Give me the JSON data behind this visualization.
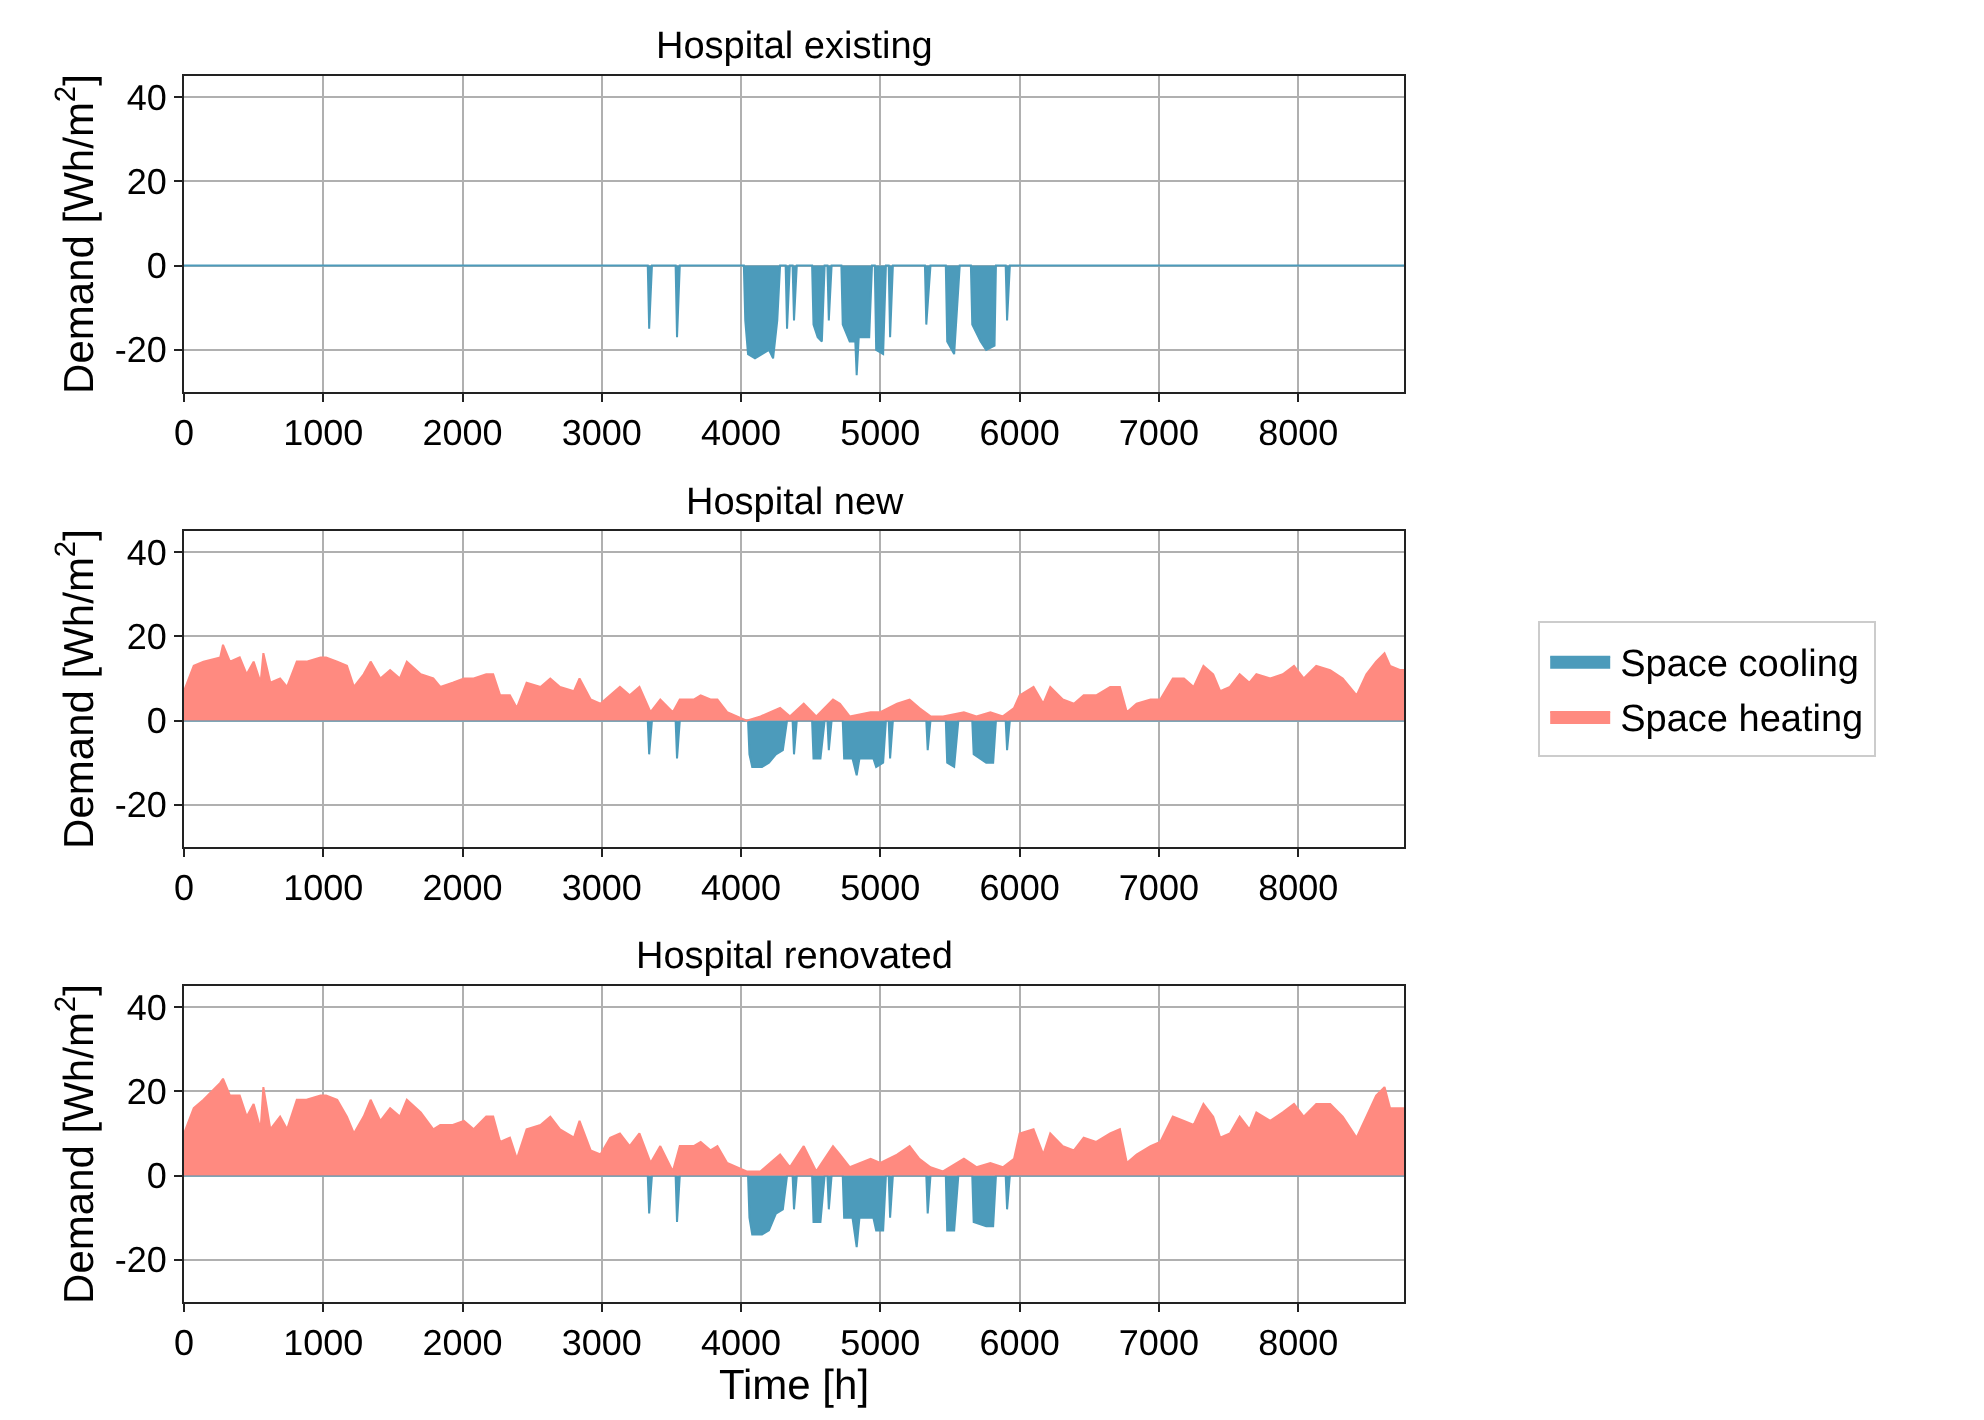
{
  "chart_data": [
    {
      "type": "area",
      "title": "Hospital existing",
      "ylabel": "Demand [Wh/m$^{2}$]",
      "xlim": [
        0,
        8760
      ],
      "xticks": [
        0,
        1000,
        2000,
        3000,
        4000,
        5000,
        6000,
        7000,
        8000
      ],
      "ylim": [
        -30,
        45
      ],
      "yticks": [
        -20,
        0,
        20,
        40
      ],
      "grid": true,
      "series": [
        {
          "color": "#4c9bbb",
          "x": [
            0,
            3330,
            3340,
            3360,
            3530,
            3540,
            3560,
            4020,
            4030,
            4050,
            4100,
            4150,
            4200,
            4230,
            4260,
            4280,
            4320,
            4330,
            4350,
            4370,
            4380,
            4400,
            4510,
            4520,
            4550,
            4580,
            4600,
            4620,
            4630,
            4650,
            4720,
            4730,
            4780,
            4820,
            4830,
            4845,
            4920,
            4940,
            4960,
            4970,
            5020,
            5040,
            5060,
            5070,
            5090,
            5320,
            5330,
            5360,
            5470,
            5480,
            5530,
            5570,
            5650,
            5660,
            5720,
            5760,
            5820,
            5830,
            5900,
            5910,
            5930,
            8760
          ],
          "values": [
            0,
            0,
            -15,
            0,
            0,
            -17,
            0,
            0,
            -13,
            -21,
            -22,
            -21,
            -20,
            -22,
            -13,
            0,
            0,
            -15,
            0,
            0,
            -13,
            0,
            0,
            -14,
            -17,
            -18,
            0,
            0,
            -13,
            0,
            0,
            -14,
            -18,
            -18,
            -26,
            -17,
            -17,
            0,
            0,
            -20,
            -21,
            0,
            0,
            -17,
            0,
            0,
            -14,
            0,
            0,
            -18,
            -21,
            0,
            0,
            -14,
            -18,
            -20,
            -19,
            0,
            0,
            -13,
            0,
            0
          ]
        }
      ]
    },
    {
      "type": "area",
      "title": "Hospital new",
      "ylabel": "Demand [Wh/m$^{2}$]",
      "xlim": [
        0,
        8760
      ],
      "xticks": [
        0,
        1000,
        2000,
        3000,
        4000,
        5000,
        6000,
        7000,
        8000
      ],
      "ylim": [
        -30,
        45
      ],
      "yticks": [
        -20,
        0,
        20,
        40
      ],
      "grid": true,
      "legend": "right",
      "series": [
        {
          "name": "Space cooling",
          "color": "#4c9bbb",
          "x": [
            0,
            3330,
            3340,
            3360,
            3530,
            3540,
            3560,
            4050,
            4060,
            4080,
            4150,
            4200,
            4250,
            4300,
            4330,
            4370,
            4380,
            4400,
            4510,
            4520,
            4570,
            4600,
            4620,
            4630,
            4650,
            4730,
            4740,
            4800,
            4830,
            4850,
            4950,
            4970,
            5020,
            5040,
            5060,
            5070,
            5090,
            5330,
            5340,
            5360,
            5470,
            5480,
            5530,
            5560,
            5660,
            5670,
            5760,
            5810,
            5830,
            5900,
            5910,
            5930,
            8760
          ],
          "values": [
            0,
            0,
            -8,
            0,
            0,
            -9,
            0,
            0,
            -8,
            -11,
            -11,
            -10,
            -8,
            -7,
            0,
            0,
            -8,
            0,
            0,
            -9,
            -9,
            0,
            0,
            -7,
            0,
            0,
            -9,
            -9,
            -13,
            -9,
            -9,
            -11,
            -10,
            0,
            0,
            -9,
            0,
            0,
            -7,
            0,
            0,
            -10,
            -11,
            0,
            0,
            -8,
            -10,
            -10,
            0,
            0,
            -7,
            0,
            0
          ]
        },
        {
          "name": "Space heating",
          "color": "#ff8a80",
          "x": [
            0,
            70,
            140,
            260,
            280,
            330,
            400,
            450,
            500,
            550,
            570,
            620,
            690,
            740,
            810,
            880,
            980,
            1020,
            1100,
            1170,
            1220,
            1290,
            1340,
            1410,
            1480,
            1550,
            1600,
            1700,
            1790,
            1840,
            1930,
            2010,
            2080,
            2170,
            2220,
            2270,
            2340,
            2390,
            2460,
            2560,
            2630,
            2700,
            2800,
            2840,
            2920,
            2990,
            3060,
            3130,
            3200,
            3270,
            3350,
            3420,
            3510,
            3560,
            3660,
            3710,
            3780,
            3830,
            3900,
            3970,
            4040,
            4140,
            4280,
            4350,
            4450,
            4540,
            4660,
            4710,
            4780,
            4930,
            5000,
            5120,
            5210,
            5280,
            5360,
            5450,
            5600,
            5690,
            5790,
            5880,
            5960,
            6000,
            6100,
            6170,
            6220,
            6310,
            6390,
            6460,
            6550,
            6650,
            6720,
            6770,
            6840,
            6940,
            7010,
            7100,
            7180,
            7250,
            7320,
            7390,
            7440,
            7510,
            7580,
            7650,
            7700,
            7800,
            7890,
            7970,
            8040,
            8130,
            8230,
            8320,
            8420,
            8490,
            8560,
            8620,
            8660,
            8730,
            8760
          ],
          "values": [
            7,
            13,
            14,
            15,
            18,
            14,
            15,
            11,
            14,
            9,
            16,
            9,
            10,
            8,
            14,
            14,
            15,
            15,
            14,
            13,
            8,
            11,
            14,
            10,
            12,
            10,
            14,
            11,
            10,
            8,
            9,
            10,
            10,
            11,
            11,
            6,
            6,
            3,
            9,
            8,
            10,
            8,
            7,
            10,
            5,
            4,
            6,
            8,
            6,
            8,
            2,
            5,
            2,
            5,
            5,
            6,
            5,
            5,
            2,
            1,
            0,
            1,
            3,
            1,
            4,
            1,
            5,
            4,
            1,
            2,
            2,
            4,
            5,
            3,
            1,
            1,
            2,
            1,
            2,
            1,
            3,
            6,
            8,
            4,
            8,
            5,
            4,
            6,
            6,
            8,
            8,
            2,
            4,
            5,
            5,
            10,
            10,
            8,
            13,
            11,
            7,
            8,
            11,
            9,
            11,
            10,
            11,
            13,
            10,
            13,
            12,
            10,
            6,
            11,
            14,
            16,
            13,
            12,
            12
          ]
        }
      ]
    },
    {
      "type": "area",
      "title": "Hospital renovated",
      "xlabel": "Time [h]",
      "ylabel": "Demand [Wh/m$^{2}$]",
      "xlim": [
        0,
        8760
      ],
      "xticks": [
        0,
        1000,
        2000,
        3000,
        4000,
        5000,
        6000,
        7000,
        8000
      ],
      "ylim": [
        -30,
        45
      ],
      "yticks": [
        -20,
        0,
        20,
        40
      ],
      "grid": true,
      "series": [
        {
          "color": "#4c9bbb",
          "x": [
            0,
            3330,
            3340,
            3360,
            3530,
            3540,
            3560,
            4050,
            4060,
            4080,
            4150,
            4200,
            4250,
            4300,
            4330,
            4370,
            4380,
            4400,
            4510,
            4520,
            4570,
            4600,
            4620,
            4630,
            4650,
            4730,
            4740,
            4800,
            4830,
            4850,
            4950,
            4970,
            5020,
            5040,
            5060,
            5070,
            5090,
            5330,
            5340,
            5360,
            5470,
            5480,
            5530,
            5560,
            5660,
            5670,
            5760,
            5810,
            5830,
            5900,
            5910,
            5930,
            8760
          ],
          "values": [
            0,
            0,
            -9,
            0,
            0,
            -11,
            0,
            0,
            -10,
            -14,
            -14,
            -13,
            -9,
            -8,
            0,
            0,
            -8,
            0,
            0,
            -11,
            -11,
            0,
            0,
            -8,
            0,
            0,
            -10,
            -10,
            -17,
            -10,
            -10,
            -13,
            -13,
            0,
            0,
            -10,
            0,
            0,
            -9,
            0,
            0,
            -13,
            -13,
            0,
            0,
            -11,
            -12,
            -12,
            0,
            0,
            -8,
            0,
            0
          ]
        },
        {
          "color": "#ff8a80",
          "x": [
            0,
            70,
            140,
            260,
            280,
            330,
            400,
            450,
            500,
            550,
            570,
            620,
            690,
            740,
            810,
            880,
            980,
            1020,
            1100,
            1170,
            1220,
            1290,
            1340,
            1410,
            1480,
            1550,
            1600,
            1700,
            1790,
            1840,
            1930,
            2010,
            2080,
            2170,
            2220,
            2270,
            2340,
            2390,
            2460,
            2560,
            2630,
            2700,
            2800,
            2840,
            2920,
            2990,
            3060,
            3130,
            3200,
            3270,
            3350,
            3420,
            3510,
            3560,
            3660,
            3710,
            3780,
            3830,
            3900,
            3970,
            4040,
            4140,
            4280,
            4350,
            4450,
            4540,
            4660,
            4710,
            4780,
            4930,
            5000,
            5120,
            5210,
            5280,
            5360,
            5450,
            5600,
            5690,
            5790,
            5880,
            5960,
            6000,
            6100,
            6170,
            6220,
            6310,
            6390,
            6460,
            6550,
            6650,
            6720,
            6770,
            6840,
            6940,
            7010,
            7100,
            7180,
            7250,
            7320,
            7390,
            7440,
            7510,
            7580,
            7650,
            7700,
            7800,
            7890,
            7970,
            8040,
            8130,
            8230,
            8320,
            8420,
            8490,
            8560,
            8620,
            8660,
            8730,
            8760
          ],
          "values": [
            10,
            16,
            18,
            22,
            23,
            19,
            19,
            14,
            17,
            11,
            21,
            11,
            14,
            11,
            18,
            18,
            19,
            19,
            18,
            14,
            10,
            14,
            18,
            13,
            16,
            14,
            18,
            15,
            11,
            12,
            12,
            13,
            11,
            14,
            14,
            8,
            9,
            4,
            11,
            12,
            14,
            11,
            9,
            13,
            6,
            5,
            9,
            10,
            7,
            10,
            3,
            7,
            1,
            7,
            7,
            8,
            6,
            7,
            3,
            2,
            1,
            1,
            5,
            2,
            7,
            1,
            7,
            5,
            2,
            4,
            3,
            5,
            7,
            4,
            2,
            1,
            4,
            2,
            3,
            2,
            4,
            10,
            11,
            5,
            10,
            7,
            6,
            9,
            8,
            10,
            11,
            3,
            5,
            7,
            8,
            14,
            13,
            12,
            17,
            14,
            9,
            10,
            14,
            11,
            15,
            13,
            15,
            17,
            14,
            17,
            17,
            14,
            9,
            14,
            19,
            21,
            16,
            16,
            16
          ]
        }
      ]
    }
  ]
}
